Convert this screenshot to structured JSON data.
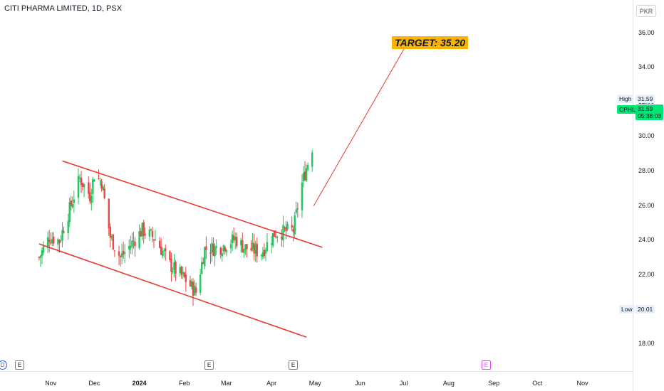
{
  "header": {
    "title": "CITI PHARMA LIMITED, 1D, PSX",
    "currency": "PKR"
  },
  "annotation": {
    "target_label": "TARGET: 35.20",
    "target_value": 35.2
  },
  "markers": {
    "high_label": "High",
    "high_value": "31.59",
    "symbol": "CPHL",
    "last_price": "31.59",
    "countdown": "05:38:03",
    "low_label": "Low",
    "low_value": "20.01"
  },
  "events": [
    {
      "label": "D",
      "kind": "dividend"
    },
    {
      "label": "E",
      "kind": "earnings"
    },
    {
      "label": "E",
      "kind": "earnings"
    },
    {
      "label": "E",
      "kind": "earnings"
    },
    {
      "label": "E",
      "kind": "earnings-upcoming"
    }
  ],
  "colors": {
    "up": "#22c55e",
    "down": "#ef4444",
    "channel": "#e53935",
    "target_bg": "#f9b403",
    "symbol_bg": "#00e676"
  },
  "chart_data": {
    "type": "candlestick",
    "title": "CITI PHARMA LIMITED, 1D, PSX",
    "y_ticks": [
      "36.00",
      "34.00",
      "32.00",
      "30.00",
      "28.00",
      "26.00",
      "24.00",
      "22.00",
      "20.00",
      "18.00"
    ],
    "x_ticks": [
      "Nov",
      "Dec",
      "2024",
      "Feb",
      "Mar",
      "Apr",
      "May",
      "Jun",
      "Jul",
      "Aug",
      "Sep",
      "Oct",
      "Nov"
    ],
    "ylim": [
      16.6,
      37.9
    ],
    "grid": false,
    "approx_closing_path": [
      [
        "2023-10-24",
        23.0
      ],
      [
        "2023-10-31",
        24.2
      ],
      [
        "2023-11-07",
        24.0
      ],
      [
        "2023-11-14",
        25.8
      ],
      [
        "2023-11-21",
        27.6
      ],
      [
        "2023-11-28",
        26.6
      ],
      [
        "2023-12-01",
        27.8
      ],
      [
        "2023-12-06",
        27.4
      ],
      [
        "2023-12-12",
        24.2
      ],
      [
        "2023-12-19",
        23.0
      ],
      [
        "2024-01-03",
        24.6
      ],
      [
        "2024-01-12",
        24.1
      ],
      [
        "2024-01-22",
        22.6
      ],
      [
        "2024-02-01",
        21.8
      ],
      [
        "2024-02-09",
        21.0
      ],
      [
        "2024-02-15",
        23.5
      ],
      [
        "2024-02-26",
        23.6
      ],
      [
        "2024-03-07",
        24.1
      ],
      [
        "2024-03-13",
        23.6
      ],
      [
        "2024-03-25",
        23.3
      ],
      [
        "2024-04-03",
        24.4
      ],
      [
        "2024-04-16",
        24.6
      ],
      [
        "2024-04-22",
        27.3
      ],
      [
        "2024-04-29",
        29.4
      ]
    ],
    "channel": {
      "upper_line": [
        [
          "2023-11-09",
          28.6
        ],
        [
          "2024-05-06",
          23.6
        ]
      ],
      "lower_line": [
        [
          "2023-10-24",
          23.8
        ],
        [
          "2024-04-25",
          18.4
        ]
      ]
    },
    "projection_line": [
      [
        "2024-04-30",
        26.0
      ],
      [
        "2024-07-02",
        35.2
      ]
    ]
  }
}
